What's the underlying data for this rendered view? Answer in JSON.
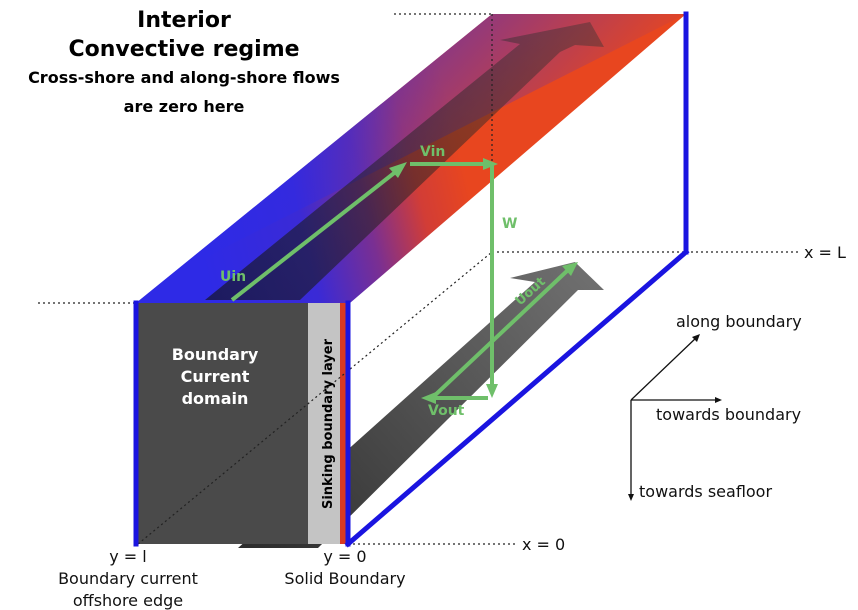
{
  "title": {
    "line1": "Interior",
    "line2": "Convective regime",
    "line3": "Cross-shore and along-shore flows",
    "line4": "are zero here"
  },
  "labels": {
    "domain_line1": "Boundary",
    "domain_line2": "Current",
    "domain_line3": "domain",
    "sinking_layer": "Sinking boundary layer",
    "x_L": "x = L",
    "x_0": "x = 0",
    "y_l": "y = l",
    "y_l_desc1": "Boundary current",
    "y_l_desc2": "offshore edge",
    "y_0": "y = 0",
    "y_0_desc": "Solid Boundary"
  },
  "arrows": {
    "uin": "Uin",
    "vin": "Vin",
    "w": "W",
    "uout": "Uout",
    "vout": "Vout"
  },
  "axes": {
    "along": "along boundary",
    "towards": "towards boundary",
    "seafloor": "towards seafloor"
  },
  "colors": {
    "edge_blue": "#1a14e0",
    "top_blue": "#2e2ae6",
    "top_red": "#e8401f",
    "flow_green": "#6fbf6a",
    "domain_gray": "#4a4a4a",
    "layer_gray": "#c4c4c4"
  }
}
